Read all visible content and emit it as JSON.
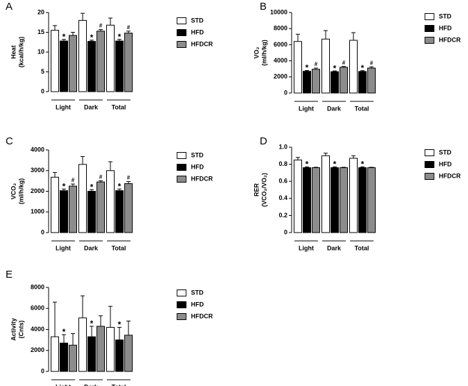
{
  "chart_data": [
    {
      "type": "bar",
      "panel": "A",
      "y_label": [
        "Heat",
        "(kcal/h/kg)"
      ],
      "categories": [
        "Light",
        "Dark",
        "Total"
      ],
      "ylim": [
        0,
        20
      ],
      "yticks": [
        0,
        5,
        10,
        15,
        20
      ],
      "series": [
        {
          "name": "STD",
          "color": "#ffffff",
          "values": [
            15.5,
            18.0,
            16.8
          ],
          "errors": [
            1.2,
            1.8,
            1.8
          ],
          "markers": [
            null,
            null,
            null
          ]
        },
        {
          "name": "HFD",
          "color": "#000000",
          "values": [
            12.8,
            12.7,
            12.8
          ],
          "errors": [
            0.4,
            0.3,
            0.4
          ],
          "markers": [
            "*",
            "*",
            "*"
          ]
        },
        {
          "name": "HFDCR",
          "color": "#8c8c8c",
          "values": [
            14.2,
            15.3,
            14.8
          ],
          "errors": [
            0.8,
            0.4,
            0.5
          ],
          "markers": [
            null,
            "#",
            "#"
          ]
        }
      ]
    },
    {
      "type": "bar",
      "panel": "B",
      "y_label": [
        "VO₂",
        "(ml/h/kg)"
      ],
      "categories": [
        "Light",
        "Dark",
        "Total"
      ],
      "ylim": [
        0,
        10000
      ],
      "yticks": [
        0,
        2000,
        4000,
        6000,
        8000,
        10000
      ],
      "series": [
        {
          "name": "STD",
          "color": "#ffffff",
          "values": [
            6400,
            6700,
            6550
          ],
          "errors": [
            900,
            1050,
            950
          ],
          "markers": [
            null,
            null,
            null
          ]
        },
        {
          "name": "HFD",
          "color": "#000000",
          "values": [
            2700,
            2650,
            2680
          ],
          "errors": [
            100,
            100,
            100
          ],
          "markers": [
            "*",
            "*",
            "*"
          ]
        },
        {
          "name": "HFDCR",
          "color": "#8c8c8c",
          "values": [
            2950,
            3200,
            3100
          ],
          "errors": [
            150,
            100,
            150
          ],
          "markers": [
            "#",
            "#",
            "#"
          ]
        }
      ]
    },
    {
      "type": "bar",
      "panel": "C",
      "y_label": [
        "VCO₂",
        "(ml/h/kg)"
      ],
      "categories": [
        "Light",
        "Dark",
        "Total"
      ],
      "ylim": [
        0,
        4000
      ],
      "yticks": [
        0,
        1000,
        2000,
        3000,
        4000
      ],
      "series": [
        {
          "name": "STD",
          "color": "#ffffff",
          "values": [
            2680,
            3300,
            3000
          ],
          "errors": [
            230,
            380,
            430
          ],
          "markers": [
            null,
            null,
            null
          ]
        },
        {
          "name": "HFD",
          "color": "#000000",
          "values": [
            2030,
            2000,
            2030
          ],
          "errors": [
            80,
            80,
            80
          ],
          "markers": [
            "*",
            "*",
            "*"
          ]
        },
        {
          "name": "HFDCR",
          "color": "#8c8c8c",
          "values": [
            2250,
            2450,
            2370
          ],
          "errors": [
            100,
            60,
            100
          ],
          "markers": [
            "#",
            "#",
            "#"
          ]
        }
      ]
    },
    {
      "type": "bar",
      "panel": "D",
      "y_label": [
        "RER",
        "(VCO₂/VO₂)"
      ],
      "categories": [
        "Light",
        "Dark",
        "Total"
      ],
      "ylim": [
        0,
        1
      ],
      "yticks": [
        0,
        0.2,
        0.4,
        0.6,
        0.8,
        {
          "value": 1,
          "label": "1.0"
        }
      ],
      "series": [
        {
          "name": "STD",
          "color": "#ffffff",
          "values": [
            0.85,
            0.9,
            0.87
          ],
          "errors": [
            0.03,
            0.03,
            0.03
          ],
          "markers": [
            null,
            null,
            null
          ]
        },
        {
          "name": "HFD",
          "color": "#000000",
          "values": [
            0.76,
            0.76,
            0.76
          ],
          "errors": [
            0.01,
            0.01,
            0.01
          ],
          "markers": [
            "*",
            "*",
            "*"
          ]
        },
        {
          "name": "HFDCR",
          "color": "#8c8c8c",
          "values": [
            0.76,
            0.76,
            0.76
          ],
          "errors": [
            0.005,
            0.005,
            0.005
          ],
          "markers": [
            null,
            null,
            null
          ]
        }
      ]
    },
    {
      "type": "bar",
      "panel": "E",
      "y_label": [
        "Activity",
        "(Cnts)"
      ],
      "categories": [
        "Light",
        "Dark",
        "Total"
      ],
      "ylim": [
        0,
        8000
      ],
      "yticks": [
        0,
        2000,
        4000,
        6000,
        8000
      ],
      "series": [
        {
          "name": "STD",
          "color": "#ffffff",
          "values": [
            3300,
            5100,
            4200
          ],
          "errors": [
            3300,
            2100,
            2000
          ],
          "markers": [
            null,
            null,
            null
          ]
        },
        {
          "name": "HFD",
          "color": "#000000",
          "values": [
            2700,
            3300,
            3000
          ],
          "errors": [
            800,
            1000,
            1200
          ],
          "markers": [
            "*",
            "*",
            "*"
          ]
        },
        {
          "name": "HFDCR",
          "color": "#8c8c8c",
          "values": [
            2500,
            4300,
            3450
          ],
          "errors": [
            1100,
            1000,
            1350
          ],
          "markers": [
            null,
            null,
            null
          ]
        }
      ]
    }
  ]
}
